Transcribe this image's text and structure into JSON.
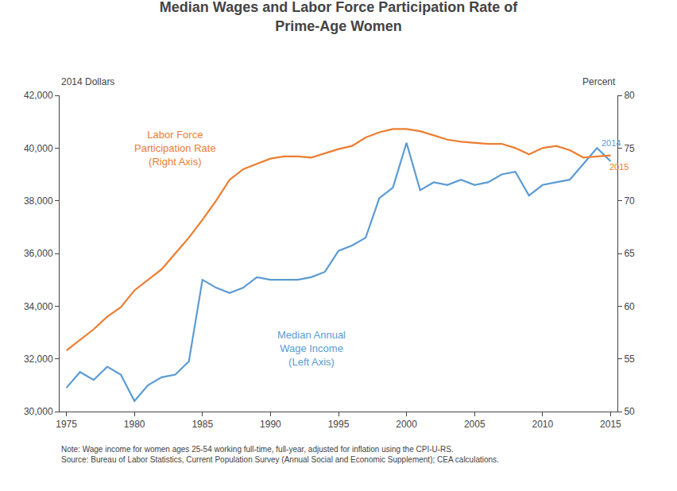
{
  "chart_data": {
    "type": "line",
    "title": "Median Wages and Labor Force Participation Rate of\nPrime-Age Women",
    "ylabel": "2014 Dollars",
    "y2label": "Percent",
    "x": [
      1975,
      1976,
      1977,
      1978,
      1979,
      1980,
      1981,
      1982,
      1983,
      1984,
      1985,
      1986,
      1987,
      1988,
      1989,
      1990,
      1991,
      1992,
      1993,
      1994,
      1995,
      1996,
      1997,
      1998,
      1999,
      2000,
      2001,
      2002,
      2003,
      2004,
      2005,
      2006,
      2007,
      2008,
      2009,
      2010,
      2011,
      2012,
      2013,
      2014,
      2015
    ],
    "series": [
      {
        "color": "#5b9bd5",
        "values": [
          30900,
          31500,
          31200,
          31700,
          31400,
          30400,
          31000,
          31300,
          31400,
          31900,
          35000,
          34700,
          34500,
          34700,
          35100,
          35000,
          35000,
          35000,
          35100,
          35300,
          36100,
          36300,
          36600,
          38100,
          38500,
          40200,
          38400,
          38700,
          38600,
          38800,
          38600,
          38700,
          39000,
          39100,
          38200,
          38600,
          38700,
          38800,
          39400,
          40000,
          39500
        ]
      },
      {
        "color": "#ed7d31",
        "axis": "y2",
        "values": [
          55.8,
          56.8,
          57.8,
          59.0,
          59.9,
          61.5,
          62.5,
          63.5,
          65.0,
          66.5,
          68.2,
          70.0,
          72.0,
          73.0,
          73.5,
          74.0,
          74.2,
          74.2,
          74.1,
          74.5,
          74.9,
          75.2,
          76.0,
          76.5,
          76.8,
          76.8,
          76.6,
          76.2,
          75.8,
          75.6,
          75.5,
          75.4,
          75.4,
          75.0,
          74.4,
          75.0,
          75.2,
          74.8,
          74.1,
          74.2,
          74.3
        ]
      }
    ],
    "xlim": [
      1974.5,
      2015.5
    ],
    "xticks": [
      1975,
      1980,
      1985,
      1990,
      1995,
      2000,
      2005,
      2010,
      2015
    ],
    "ylim": [
      30000,
      42000
    ],
    "yticks": [
      {
        "value": 30000,
        "label": "30,000"
      },
      {
        "value": 32000,
        "label": "32,000"
      },
      {
        "value": 34000,
        "label": "34,000"
      },
      {
        "value": 36000,
        "label": "36,000"
      },
      {
        "value": 38000,
        "label": "38,000"
      },
      {
        "value": 40000,
        "label": "40,000"
      },
      {
        "value": 42000,
        "label": "42,000"
      }
    ],
    "y2lim": [
      50,
      80
    ],
    "y2ticks": [
      50,
      55,
      60,
      65,
      70,
      75,
      80
    ],
    "grid": false,
    "annotations": [
      {
        "text": "Labor Force\nParticipation Rate\n(Right Axis)",
        "x": 1983,
        "y": 40800,
        "color": "#ed7d31"
      },
      {
        "text": "Median Annual\nWage Income\n(Left Axis)",
        "x": 1993,
        "y": 33200,
        "color": "#5b9bd5"
      },
      {
        "text": "2014",
        "x": 2014.2,
        "y": 40200,
        "color": "#5b9bd5"
      },
      {
        "text": "2015",
        "x": 2014.8,
        "y": 39300,
        "color": "#ed7d31"
      }
    ],
    "notes": [
      "Note: Wage income for women ages 25-54 working full-time, full-year, adjusted for inflation using the CPI-U-RS.",
      "Source: Bureau of Labor Statistics, Current Population Survey (Annual Social and Economic Supplement); CEA calculations."
    ]
  }
}
